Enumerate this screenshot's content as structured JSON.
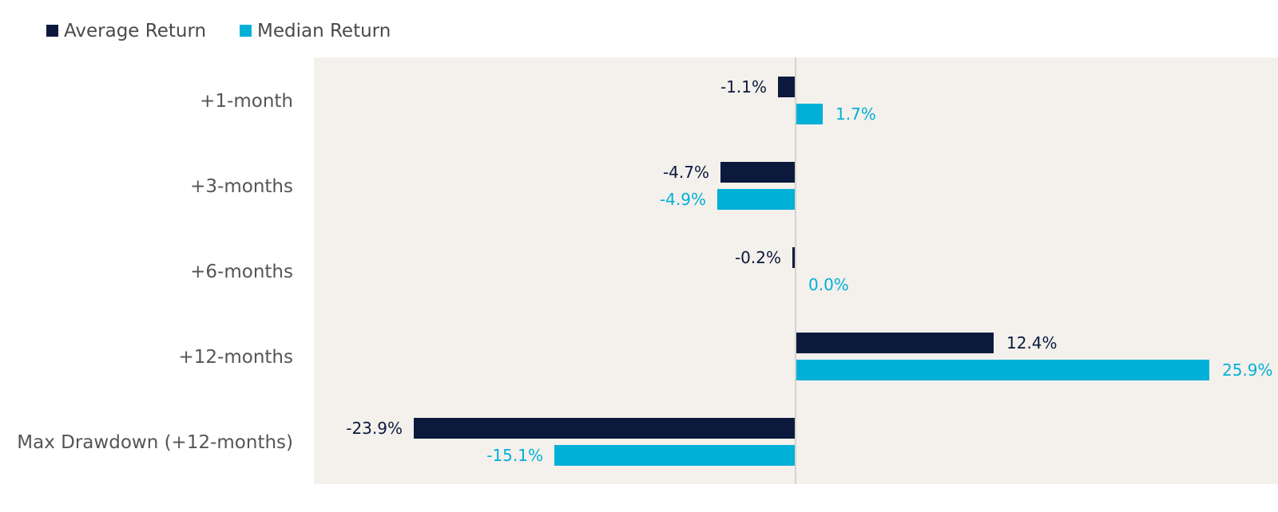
{
  "chart_data": {
    "type": "bar",
    "orientation": "horizontal",
    "categories": [
      "+1-month",
      "+3-months",
      "+6-months",
      "+12-months",
      "Max Drawdown (+12-months)"
    ],
    "series": [
      {
        "name": "Average Return",
        "color": "#0b1a3c",
        "values": [
          -1.1,
          -4.7,
          -0.2,
          12.4,
          -23.9
        ],
        "labels": [
          "-1.1%",
          "-4.7%",
          "-0.2%",
          "12.4%",
          "-23.9%"
        ]
      },
      {
        "name": "Median Return",
        "color": "#00b0d6",
        "values": [
          1.7,
          -4.9,
          0.0,
          25.9,
          -15.1
        ],
        "labels": [
          "1.7%",
          "-4.9%",
          "0.0%",
          "25.9%",
          "-15.1%"
        ]
      }
    ],
    "xlim": [
      -30,
      30
    ],
    "legend_position": "top-left",
    "plot_background": "#f4f0ec",
    "grid": false
  }
}
